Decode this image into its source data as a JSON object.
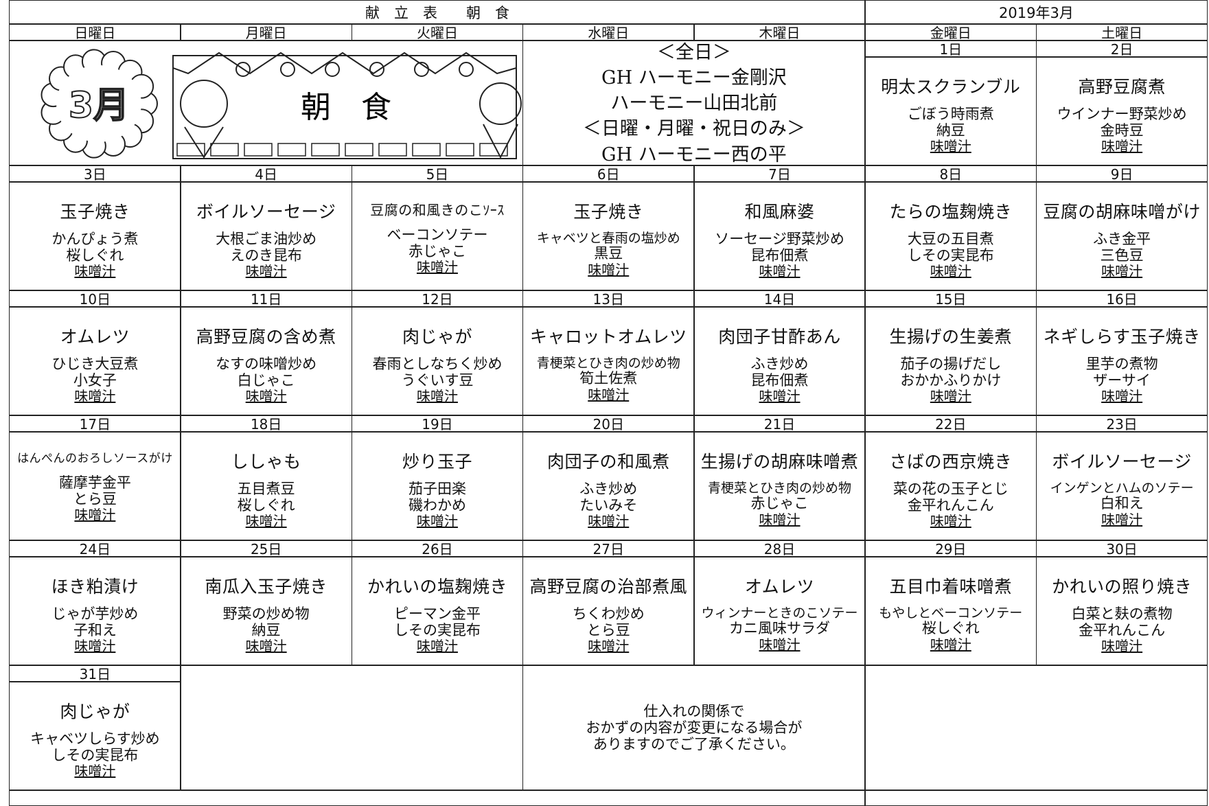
{
  "header": {
    "title": "献　立　表　　朝　食",
    "month": "2019年3月"
  },
  "weekdays": [
    "日曜日",
    "月曜日",
    "火曜日",
    "水曜日",
    "木曜日",
    "金曜日",
    "土曜日"
  ],
  "banner": {
    "month": "3月",
    "meal": "朝　食"
  },
  "notice": [
    "＜全日＞",
    "GH ハーモニー金剛沢",
    "ハーモニー山田北前",
    "＜日曜・月曜・祝日のみ＞",
    "GH ハーモニー西の平"
  ],
  "weeks": [
    [
      {
        "date": "1日",
        "items": [
          "明太スクランブル",
          "ごぼう時雨煮",
          "納豆",
          "味噌汁"
        ]
      },
      {
        "date": "2日",
        "items": [
          "高野豆腐煮",
          "ウインナー野菜炒め",
          "金時豆",
          "味噌汁"
        ]
      }
    ],
    [
      {
        "date": "3日",
        "items": [
          "玉子焼き",
          "かんぴょう煮",
          "桜しぐれ",
          "味噌汁"
        ]
      },
      {
        "date": "4日",
        "items": [
          "ボイルソーセージ",
          "大根ごま油炒め",
          "えのき昆布",
          "味噌汁"
        ]
      },
      {
        "date": "5日",
        "items": [
          "豆腐の和風きのこｿｰｽ",
          "ベーコンソテー",
          "赤じゃこ",
          "味噌汁"
        ]
      },
      {
        "date": "6日",
        "items": [
          "玉子焼き",
          "キャベツと春雨の塩炒め",
          "黒豆",
          "味噌汁"
        ]
      },
      {
        "date": "7日",
        "items": [
          "和風麻婆",
          "ソーセージ野菜炒め",
          "昆布佃煮",
          "味噌汁"
        ]
      },
      {
        "date": "8日",
        "items": [
          "たらの塩麹焼き",
          "大豆の五目煮",
          "しその実昆布",
          "味噌汁"
        ]
      },
      {
        "date": "9日",
        "items": [
          "豆腐の胡麻味噌がけ",
          "ふき金平",
          "三色豆",
          "味噌汁"
        ]
      }
    ],
    [
      {
        "date": "10日",
        "items": [
          "オムレツ",
          "ひじき大豆煮",
          "小女子",
          "味噌汁"
        ]
      },
      {
        "date": "11日",
        "items": [
          "高野豆腐の含め煮",
          "なすの味噌炒め",
          "白じゃこ",
          "味噌汁"
        ]
      },
      {
        "date": "12日",
        "items": [
          "肉じゃが",
          "春雨としなちく炒め",
          "うぐいす豆",
          "味噌汁"
        ]
      },
      {
        "date": "13日",
        "items": [
          "キャロットオムレツ",
          "青梗菜とひき肉の炒め物",
          "筍土佐煮",
          "味噌汁"
        ]
      },
      {
        "date": "14日",
        "items": [
          "肉団子甘酢あん",
          "ふき炒め",
          "昆布佃煮",
          "味噌汁"
        ]
      },
      {
        "date": "15日",
        "items": [
          "生揚げの生姜煮",
          "茄子の揚げだし",
          "おかかふりかけ",
          "味噌汁"
        ]
      },
      {
        "date": "16日",
        "items": [
          "ネギしらす玉子焼き",
          "里芋の煮物",
          "ザーサイ",
          "味噌汁"
        ]
      }
    ],
    [
      {
        "date": "17日",
        "items": [
          "はんぺんのおろしソースがけ",
          "薩摩芋金平",
          "とら豆",
          "味噌汁"
        ]
      },
      {
        "date": "18日",
        "items": [
          "ししゃも",
          "五目煮豆",
          "桜しぐれ",
          "味噌汁"
        ]
      },
      {
        "date": "19日",
        "items": [
          "炒り玉子",
          "茄子田楽",
          "磯わかめ",
          "味噌汁"
        ]
      },
      {
        "date": "20日",
        "items": [
          "肉団子の和風煮",
          "ふき炒め",
          "たいみそ",
          "味噌汁"
        ]
      },
      {
        "date": "21日",
        "items": [
          "生揚げの胡麻味噌煮",
          "青梗菜とひき肉の炒め物",
          "赤じゃこ",
          "味噌汁"
        ]
      },
      {
        "date": "22日",
        "items": [
          "さばの西京焼き",
          "菜の花の玉子とじ",
          "金平れんこん",
          "味噌汁"
        ]
      },
      {
        "date": "23日",
        "items": [
          "ボイルソーセージ",
          "インゲンとハムのソテー",
          "白和え",
          "味噌汁"
        ]
      }
    ],
    [
      {
        "date": "24日",
        "items": [
          "ほき粕漬け",
          "じゃが芋炒め",
          "子和え",
          "味噌汁"
        ]
      },
      {
        "date": "25日",
        "items": [
          "南瓜入玉子焼き",
          "野菜の炒め物",
          "納豆",
          "味噌汁"
        ]
      },
      {
        "date": "26日",
        "items": [
          "かれいの塩麹焼き",
          "ピーマン金平",
          "しその実昆布",
          "味噌汁"
        ]
      },
      {
        "date": "27日",
        "items": [
          "高野豆腐の治部煮風",
          "ちくわ炒め",
          "とら豆",
          "味噌汁"
        ]
      },
      {
        "date": "28日",
        "items": [
          "オムレツ",
          "ウィンナーときのこソテー",
          "カニ風味サラダ",
          "味噌汁"
        ]
      },
      {
        "date": "29日",
        "items": [
          "五目巾着味噌煮",
          "もやしとベーコンソテー",
          "桜しぐれ",
          "味噌汁"
        ]
      },
      {
        "date": "30日",
        "items": [
          "かれいの照り焼き",
          "白菜と麸の煮物",
          "金平れんこん",
          "味噌汁"
        ]
      }
    ],
    [
      {
        "date": "31日",
        "items": [
          "肉じゃが",
          "キャベツしらす炒め",
          "しその実昆布",
          "味噌汁"
        ]
      }
    ]
  ],
  "note": [
    "仕入れの関係で",
    "おかずの内容が変更になる場合が",
    "ありますのでご了承ください。"
  ]
}
